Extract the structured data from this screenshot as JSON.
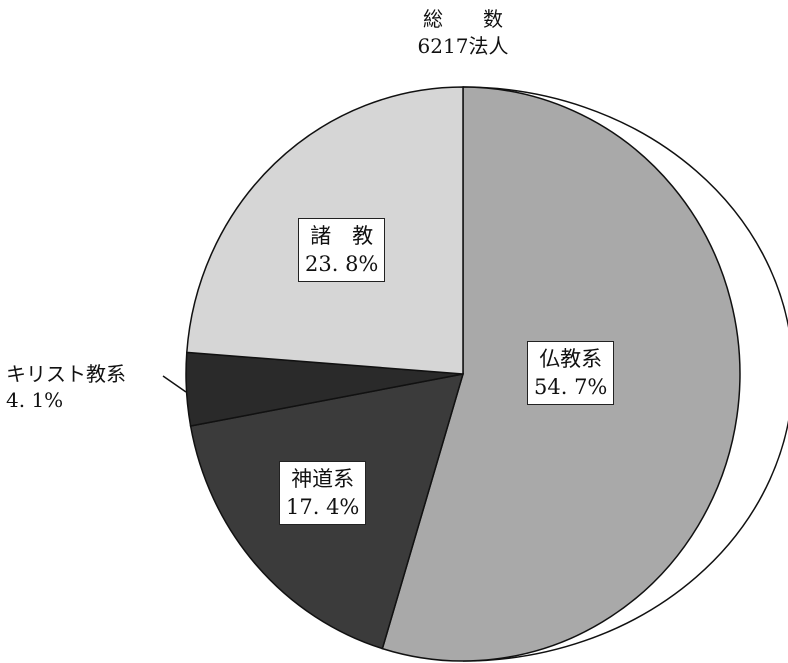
{
  "chart_data": {
    "type": "pie",
    "title": "総　　数",
    "total_label": "6217法人",
    "slices": [
      {
        "name": "仏教系",
        "value": 54.7,
        "label": "54. 7%",
        "color": "#a9a9a9"
      },
      {
        "name": "神道系",
        "value": 17.4,
        "label": "17. 4%",
        "color": "#3b3b3b"
      },
      {
        "name": "キリスト教系",
        "value": 4.1,
        "label": "4. 1%",
        "color": "#2a2a2a"
      },
      {
        "name": "諸　教",
        "value": 23.8,
        "label": "23. 8%",
        "color": "#d6d6d6"
      }
    ]
  }
}
